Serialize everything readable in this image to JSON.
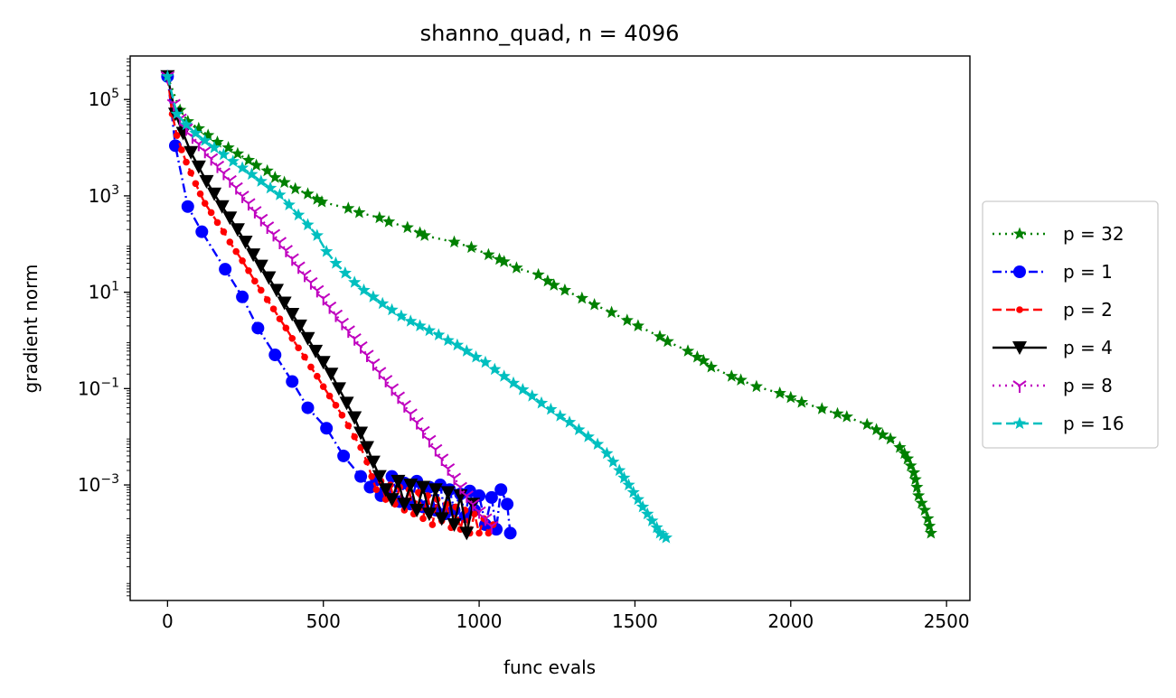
{
  "chart_data": {
    "type": "line",
    "title": "shanno_quad, n = 4096",
    "xlabel": "func evals",
    "ylabel": "gradient norm",
    "xlim": [
      -120,
      2575
    ],
    "ylim": [
      4e-06,
      800000
    ],
    "yscale": "log",
    "xticks": [
      0,
      500,
      1000,
      1500,
      2000,
      2500
    ],
    "xtick_labels": [
      "0",
      "500",
      "1000",
      "1500",
      "2000",
      "2500"
    ],
    "yticks": [
      0.001,
      0.1,
      10,
      1000,
      100000
    ],
    "ytick_labels": [
      {
        "base": "10",
        "exp": "−3"
      },
      {
        "base": "10",
        "exp": "−1"
      },
      {
        "base": "10",
        "exp": "1"
      },
      {
        "base": "10",
        "exp": "3"
      },
      {
        "base": "10",
        "exp": "5"
      }
    ],
    "grid": false,
    "legend_position": "center-right-outside",
    "series": [
      {
        "name": "p = 32",
        "color": "#008000",
        "linestyle": "dotted",
        "marker": "star",
        "x": [
          0,
          40,
          65,
          100,
          130,
          160,
          195,
          225,
          260,
          285,
          320,
          345,
          375,
          410,
          450,
          480,
          495,
          580,
          615,
          680,
          710,
          770,
          810,
          825,
          920,
          975,
          1030,
          1065,
          1080,
          1120,
          1190,
          1220,
          1240,
          1275,
          1330,
          1370,
          1425,
          1475,
          1510,
          1580,
          1605,
          1670,
          1700,
          1720,
          1745,
          1810,
          1840,
          1890,
          1965,
          2000,
          2035,
          2100,
          2150,
          2180,
          2245,
          2275,
          2295,
          2320,
          2350,
          2365,
          2375,
          2385,
          2395,
          2400,
          2405,
          2410,
          2420,
          2430,
          2440,
          2445,
          2450
        ],
        "y": [
          300000,
          60000,
          35000,
          25000,
          18000,
          13000,
          10000,
          7500,
          5500,
          4300,
          3300,
          2400,
          1900,
          1400,
          1100,
          850,
          750,
          550,
          450,
          350,
          290,
          220,
          170,
          150,
          110,
          85,
          60,
          48,
          43,
          32,
          23,
          17,
          14,
          11,
          7.5,
          5.5,
          3.8,
          2.6,
          2,
          1.2,
          0.95,
          0.6,
          0.45,
          0.38,
          0.28,
          0.18,
          0.15,
          0.11,
          0.08,
          0.065,
          0.052,
          0.038,
          0.03,
          0.026,
          0.018,
          0.014,
          0.011,
          0.009,
          0.006,
          0.0045,
          0.0035,
          0.0025,
          0.0018,
          0.0013,
          0.0009,
          0.0006,
          0.00042,
          0.0003,
          0.0002,
          0.00014,
          0.0001
        ]
      },
      {
        "name": "p = 1",
        "color": "#0000ff",
        "linestyle": "dashdot",
        "marker": "circle",
        "x": [
          0,
          25,
          65,
          110,
          185,
          240,
          290,
          345,
          400,
          450,
          510,
          565,
          620,
          650,
          670,
          685,
          700,
          720,
          745,
          760,
          780,
          800,
          820,
          840,
          860,
          875,
          890,
          905,
          920,
          940,
          955,
          970,
          985,
          1000,
          1020,
          1040,
          1055,
          1070,
          1090,
          1100
        ],
        "y": [
          300000,
          11000,
          600,
          180,
          30,
          8,
          1.8,
          0.5,
          0.14,
          0.04,
          0.015,
          0.004,
          0.0015,
          0.0009,
          0.0013,
          0.0006,
          0.0008,
          0.0015,
          0.00045,
          0.0011,
          0.0004,
          0.0012,
          0.00035,
          0.0009,
          0.0003,
          0.001,
          0.00025,
          0.0008,
          0.0003,
          0.00065,
          0.00022,
          0.00075,
          0.0003,
          0.0006,
          0.00015,
          0.00055,
          0.00012,
          0.0008,
          0.0004,
          0.0001
        ]
      },
      {
        "name": "p = 2",
        "color": "#ff0000",
        "linestyle": "dashed",
        "marker": "point",
        "x": [
          0,
          15,
          30,
          45,
          60,
          75,
          90,
          105,
          120,
          140,
          160,
          180,
          200,
          220,
          240,
          260,
          280,
          300,
          320,
          340,
          360,
          380,
          400,
          420,
          440,
          460,
          480,
          500,
          520,
          540,
          560,
          580,
          600,
          620,
          640,
          655,
          670,
          685,
          700,
          715,
          730,
          745,
          760,
          775,
          790,
          805,
          820,
          835,
          850,
          865,
          880,
          895,
          910,
          925,
          940,
          955,
          970,
          985,
          1000,
          1015,
          1030,
          1045
        ],
        "y": [
          300000,
          50000,
          18000,
          9000,
          5000,
          3000,
          1800,
          1100,
          700,
          450,
          280,
          180,
          110,
          70,
          45,
          28,
          17,
          11,
          7,
          4.5,
          2.8,
          1.8,
          1.1,
          0.7,
          0.45,
          0.28,
          0.18,
          0.11,
          0.07,
          0.045,
          0.028,
          0.017,
          0.01,
          0.006,
          0.003,
          0.0015,
          0.0008,
          0.0012,
          0.0005,
          0.001,
          0.0004,
          0.0009,
          0.0003,
          0.0008,
          0.00025,
          0.0007,
          0.0002,
          0.0006,
          0.00015,
          0.0005,
          0.00018,
          0.0004,
          0.00013,
          0.00035,
          0.00012,
          0.0003,
          0.0001,
          0.00025,
          0.0001,
          0.0002,
          0.0001,
          0.00015
        ]
      },
      {
        "name": "p = 4",
        "color": "#000000",
        "linestyle": "solid",
        "marker": "triangle-down",
        "x": [
          0,
          25,
          50,
          75,
          100,
          125,
          150,
          175,
          200,
          225,
          250,
          275,
          300,
          325,
          350,
          375,
          400,
          425,
          450,
          475,
          500,
          525,
          550,
          575,
          600,
          620,
          640,
          660,
          680,
          700,
          720,
          740,
          760,
          780,
          800,
          820,
          840,
          860,
          880,
          900,
          920,
          940,
          960,
          980
        ],
        "y": [
          300000,
          50000,
          20000,
          8000,
          4000,
          2000,
          1100,
          600,
          350,
          200,
          110,
          60,
          35,
          20,
          11,
          6,
          3.5,
          2,
          1.1,
          0.6,
          0.35,
          0.2,
          0.1,
          0.05,
          0.025,
          0.012,
          0.006,
          0.003,
          0.0015,
          0.0008,
          0.0005,
          0.0012,
          0.0004,
          0.001,
          0.0003,
          0.0009,
          0.00025,
          0.0008,
          0.0002,
          0.0007,
          0.00015,
          0.0006,
          0.0001,
          0.0004
        ]
      },
      {
        "name": "p = 8",
        "color": "#bf00bf",
        "linestyle": "dotted",
        "marker": "tri-down",
        "x": [
          0,
          20,
          40,
          60,
          80,
          100,
          120,
          140,
          160,
          180,
          200,
          220,
          240,
          260,
          280,
          300,
          320,
          340,
          360,
          380,
          400,
          420,
          440,
          460,
          480,
          500,
          520,
          540,
          560,
          580,
          600,
          620,
          640,
          660,
          680,
          700,
          720,
          740,
          760,
          780,
          800,
          820,
          840,
          860,
          880,
          900,
          920,
          940,
          960,
          980,
          1000,
          1020,
          1040
        ],
        "y": [
          300000,
          80000,
          40000,
          25000,
          17000,
          12000,
          8500,
          6000,
          4200,
          3000,
          2100,
          1500,
          1000,
          700,
          480,
          330,
          230,
          160,
          110,
          75,
          50,
          34,
          23,
          16,
          11,
          7.5,
          5,
          3.4,
          2.3,
          1.6,
          1.1,
          0.75,
          0.5,
          0.33,
          0.22,
          0.15,
          0.1,
          0.068,
          0.045,
          0.03,
          0.02,
          0.013,
          0.0085,
          0.0055,
          0.0035,
          0.0022,
          0.0014,
          0.0009,
          0.0006,
          0.0004,
          0.00028,
          0.0002,
          0.00014
        ]
      },
      {
        "name": "p = 16",
        "color": "#00bfbf",
        "linestyle": "dashed",
        "marker": "star",
        "x": [
          0,
          30,
          60,
          90,
          120,
          150,
          180,
          210,
          240,
          270,
          300,
          330,
          360,
          390,
          420,
          450,
          480,
          510,
          540,
          570,
          600,
          630,
          660,
          690,
          720,
          750,
          780,
          810,
          840,
          870,
          900,
          930,
          960,
          990,
          1020,
          1050,
          1080,
          1110,
          1140,
          1170,
          1200,
          1230,
          1260,
          1290,
          1320,
          1350,
          1380,
          1410,
          1430,
          1450,
          1465,
          1480,
          1495,
          1510,
          1525,
          1540,
          1555,
          1570,
          1580,
          1590,
          1600
        ],
        "y": [
          300000,
          50000,
          30000,
          20000,
          14000,
          10000,
          7200,
          5200,
          3800,
          2800,
          2000,
          1450,
          1050,
          650,
          400,
          250,
          150,
          70,
          40,
          25,
          16,
          11,
          8,
          5.8,
          4.3,
          3.2,
          2.5,
          2,
          1.6,
          1.3,
          1,
          0.8,
          0.6,
          0.45,
          0.35,
          0.25,
          0.18,
          0.13,
          0.095,
          0.07,
          0.05,
          0.037,
          0.027,
          0.02,
          0.014,
          0.01,
          0.007,
          0.0045,
          0.003,
          0.002,
          0.0014,
          0.001,
          0.0007,
          0.0005,
          0.00035,
          0.00025,
          0.00018,
          0.00013,
          0.0001,
          9e-05,
          8e-05
        ]
      }
    ]
  }
}
